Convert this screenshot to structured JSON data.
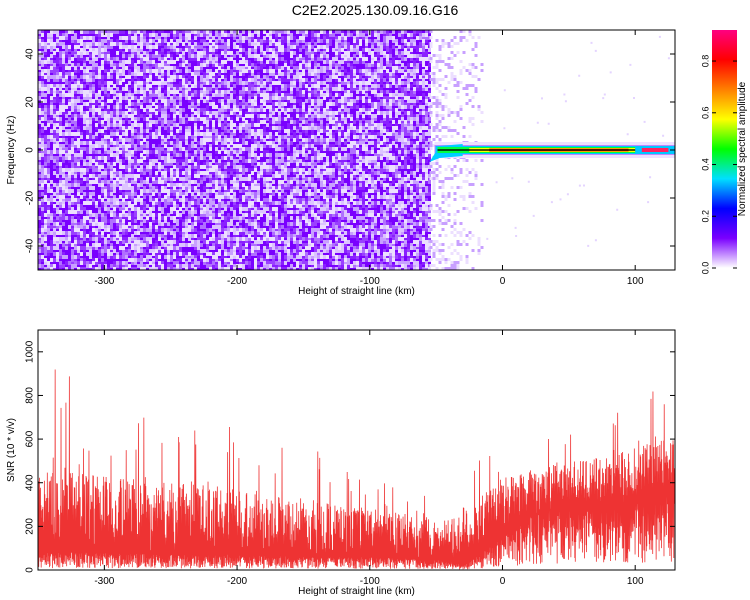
{
  "title": "C2E2.2025.130.09.16.G16",
  "chart_data": [
    {
      "type": "heatmap",
      "xlabel": "Height of straight line (km)",
      "ylabel": "Frequency (Hz)",
      "xlim": [
        -350,
        130
      ],
      "ylim": [
        -50,
        50
      ],
      "x_ticks": [
        -300,
        -200,
        -100,
        0,
        100
      ],
      "y_ticks": [
        -40,
        -20,
        0,
        20,
        40
      ],
      "colorbar": {
        "label": "Normalized spectral amplitude",
        "range": [
          0,
          0.92
        ],
        "ticks": [
          0.0,
          0.2,
          0.4,
          0.6,
          0.8
        ],
        "colors": [
          "#ffffff",
          "#7a00ff",
          "#0000ff",
          "#00e0ff",
          "#00ff00",
          "#ffff00",
          "#ff8000",
          "#ff0000",
          "#ff0080"
        ]
      },
      "noise_region_x": [
        -350,
        -55
      ],
      "sparse_region_x": [
        -55,
        -15
      ],
      "signal_line_x": [
        -55,
        130
      ],
      "signal_frequency": 0
    },
    {
      "type": "line",
      "xlabel": "Height of straight line (km)",
      "ylabel": "SNR (10 * v/v)",
      "xlim": [
        -350,
        130
      ],
      "ylim": [
        0,
        1100
      ],
      "x_ticks": [
        -300,
        -200,
        -100,
        0,
        100
      ],
      "y_ticks": [
        0,
        200,
        400,
        600,
        800,
        1000
      ],
      "color": "#ee3333",
      "envelope": {
        "x": [
          -350,
          -330,
          -300,
          -250,
          -200,
          -150,
          -100,
          -60,
          -40,
          -30,
          -20,
          0,
          20,
          50,
          80,
          100,
          130
        ],
        "base": [
          80,
          80,
          80,
          70,
          70,
          60,
          60,
          50,
          40,
          20,
          60,
          150,
          250,
          300,
          300,
          300,
          350
        ],
        "top": [
          450,
          450,
          430,
          400,
          380,
          330,
          280,
          250,
          230,
          300,
          350,
          420,
          480,
          500,
          520,
          560,
          620
        ],
        "spike": [
          1050,
          920,
          750,
          720,
          650,
          600,
          450,
          380,
          350,
          400,
          500,
          580,
          650,
          700,
          700,
          800,
          850
        ]
      }
    }
  ]
}
